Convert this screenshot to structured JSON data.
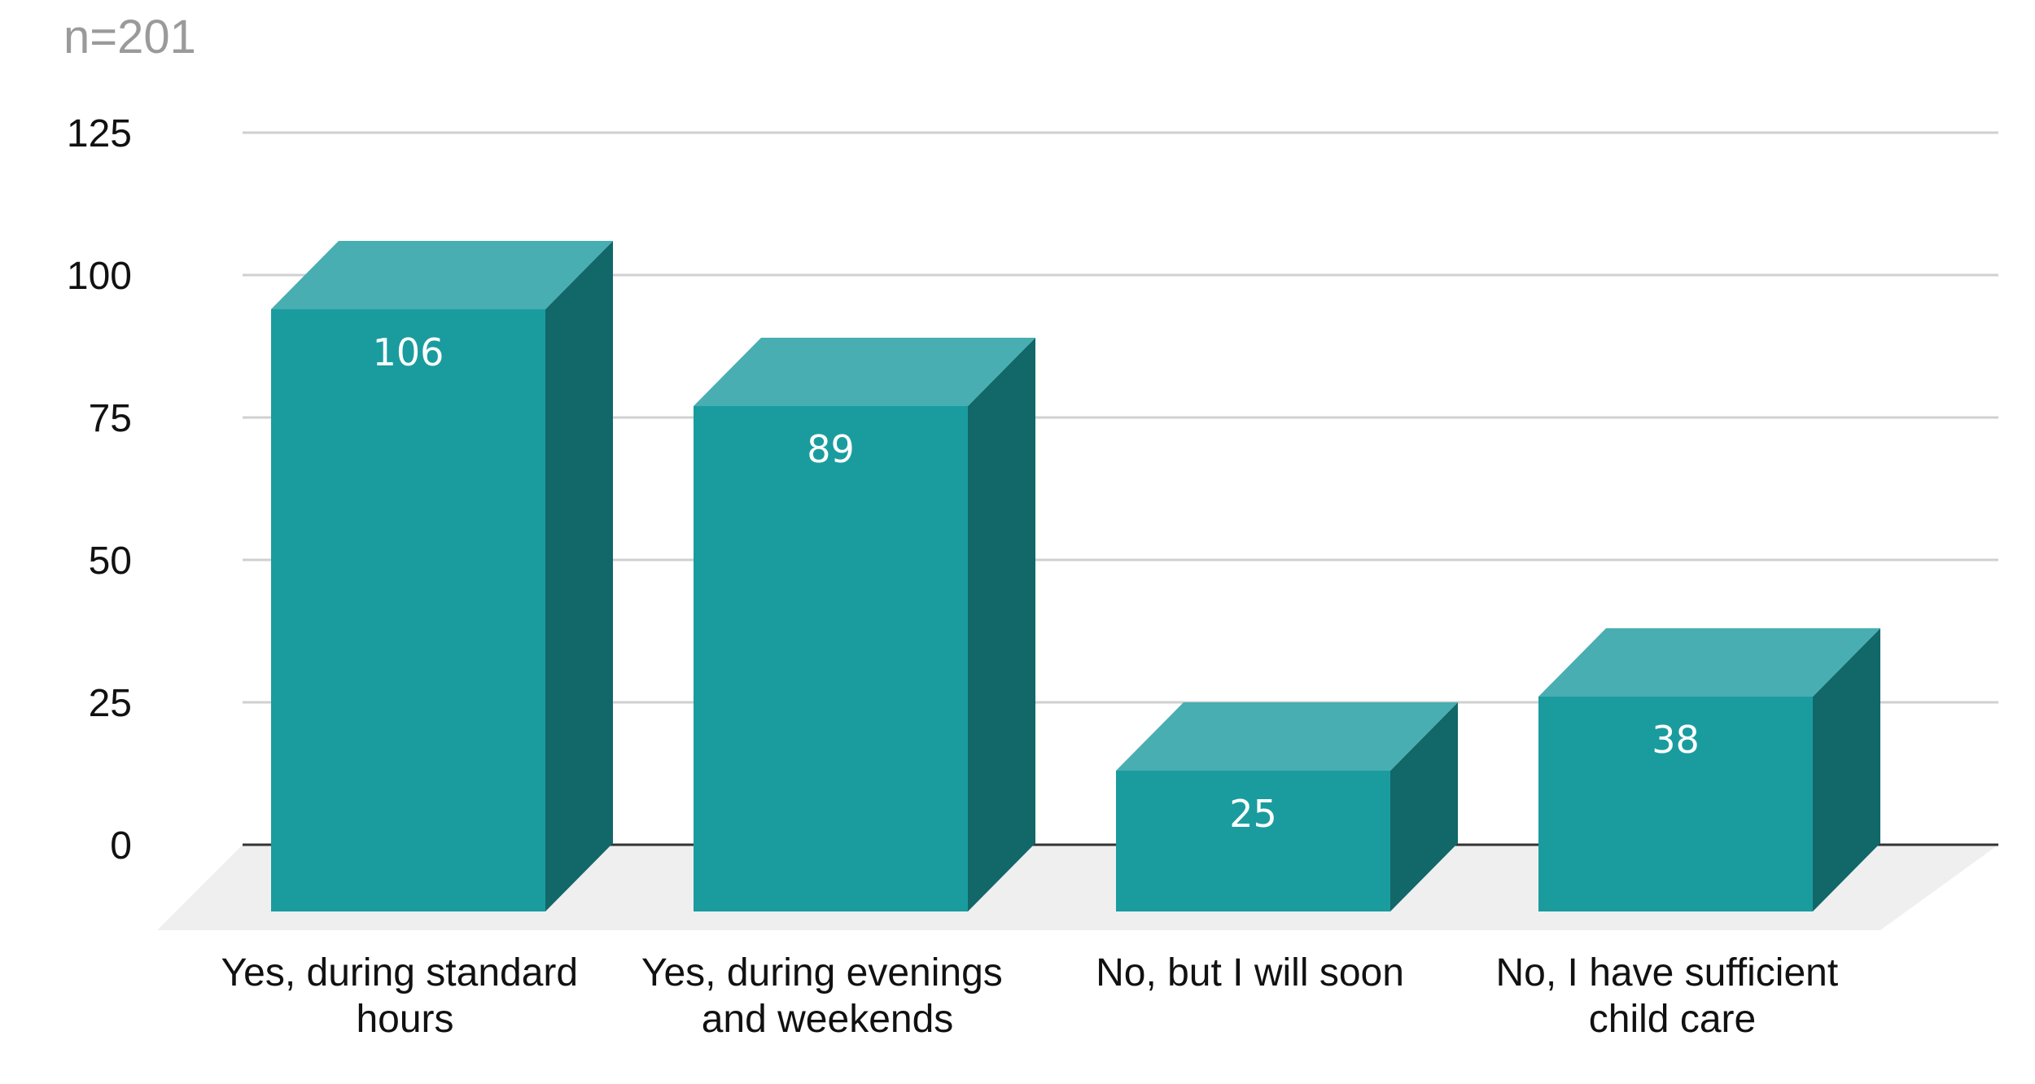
{
  "chart_data": {
    "type": "bar",
    "sample_size": "n=201",
    "categories": [
      [
        "Yes, during standard",
        "hours"
      ],
      [
        "Yes, during evenings",
        "and weekends"
      ],
      [
        "No, but I will soon"
      ],
      [
        "No, I have sufficient",
        "child care"
      ]
    ],
    "values": [
      106,
      89,
      25,
      38
    ],
    "data_labels": [
      "106",
      "89",
      "25",
      "38"
    ],
    "yticks": [
      "0",
      "25",
      "50",
      "75",
      "100",
      "125"
    ],
    "ylim": [
      0,
      125
    ],
    "grid": true,
    "legend": "none",
    "style": "3d-box",
    "colors": {
      "front": "#1a9c9f",
      "top": "#48aeb2",
      "side": "#126769",
      "floor": "#efefef",
      "grid": "#d0d0d0",
      "baseline": "#333333"
    }
  }
}
